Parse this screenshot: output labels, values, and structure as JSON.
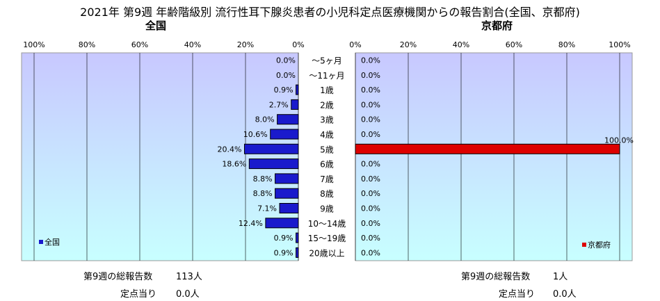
{
  "title": "2021年 第9週 年齢階級別 流行性耳下腺炎患者の小児科定点医療機関からの報告割合(全国、京都府)",
  "left": {
    "heading": "全国",
    "axis_ticks": [
      "100%",
      "80%",
      "60%",
      "40%",
      "20%",
      "0%"
    ],
    "legend": "全国",
    "total_label": "第9週の総報告数",
    "total_value": "113人",
    "per_site_label": "定点当り",
    "per_site_value": "0.0人"
  },
  "right": {
    "heading": "京都府",
    "axis_ticks": [
      "0%",
      "20%",
      "40%",
      "60%",
      "80%",
      "100%"
    ],
    "legend": "京都府",
    "total_label": "第9週の総報告数",
    "total_value": "1人",
    "per_site_label": "定点当り",
    "per_site_value": "0.0人"
  },
  "chart_data": {
    "type": "bar",
    "orientation": "horizontal",
    "categories": [
      "～5ヶ月",
      "～11ヶ月",
      "1歳",
      "2歳",
      "3歳",
      "4歳",
      "5歳",
      "6歳",
      "7歳",
      "8歳",
      "9歳",
      "10～14歳",
      "15～19歳",
      "20歳以上"
    ],
    "series": [
      {
        "name": "全国",
        "values": [
          0.0,
          0.0,
          0.9,
          2.7,
          8.0,
          10.6,
          20.4,
          18.6,
          8.8,
          8.8,
          7.1,
          12.4,
          0.9,
          0.9
        ],
        "labels": [
          "0.0%",
          "0.0%",
          "0.9%",
          "2.7%",
          "8.0%",
          "10.6%",
          "20.4%",
          "18.6%",
          "8.8%",
          "8.8%",
          "7.1%",
          "12.4%",
          "0.9%",
          "0.9%"
        ]
      },
      {
        "name": "京都府",
        "values": [
          0.0,
          0.0,
          0.0,
          0.0,
          0.0,
          0.0,
          100.0,
          0.0,
          0.0,
          0.0,
          0.0,
          0.0,
          0.0,
          0.0
        ],
        "labels": [
          "0.0%",
          "0.0%",
          "0.0%",
          "0.0%",
          "0.0%",
          "0.0%",
          "100.0%",
          "0.0%",
          "0.0%",
          "0.0%",
          "0.0%",
          "0.0%",
          "0.0%",
          "0.0%"
        ]
      }
    ],
    "xlim": [
      0,
      100
    ],
    "grid": true,
    "colors": {
      "national": "#1a1acc",
      "kyoto": "#dd0000",
      "panel_top": "#c8c8ff",
      "panel_bottom": "#c8ffff"
    }
  }
}
